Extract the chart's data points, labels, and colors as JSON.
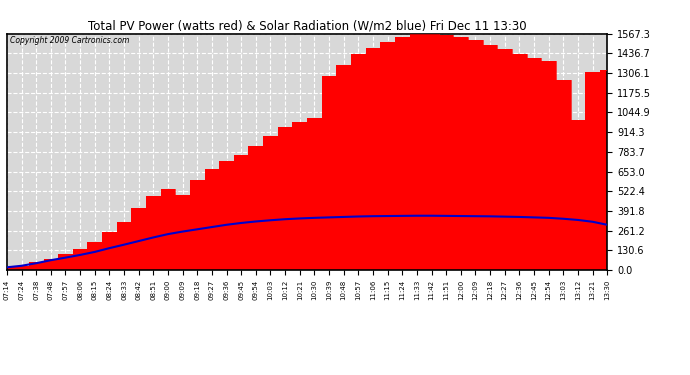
{
  "title": "Total PV Power (watts red) & Solar Radiation (W/m2 blue) Fri Dec 11 13:30",
  "copyright": "Copyright 2009 Cartronics.com",
  "bg_color": "#ffffff",
  "plot_bg_color": "#d8d8d8",
  "grid_color": "#ffffff",
  "fill_color": "#ff0000",
  "line_color": "#0000cc",
  "ylim": [
    0.0,
    1567.3
  ],
  "yticks": [
    0.0,
    130.6,
    261.2,
    391.8,
    522.4,
    653.0,
    783.7,
    914.3,
    1044.9,
    1175.5,
    1306.1,
    1436.7,
    1567.3
  ],
  "x_labels": [
    "07:14",
    "07:24",
    "07:38",
    "07:48",
    "07:57",
    "08:06",
    "08:15",
    "08:24",
    "08:33",
    "08:42",
    "08:51",
    "09:00",
    "09:09",
    "09:18",
    "09:27",
    "09:36",
    "09:45",
    "09:54",
    "10:03",
    "10:12",
    "10:21",
    "10:30",
    "10:39",
    "10:48",
    "10:57",
    "11:06",
    "11:15",
    "11:24",
    "11:33",
    "11:42",
    "11:51",
    "12:00",
    "12:09",
    "12:18",
    "12:27",
    "12:36",
    "12:45",
    "12:54",
    "13:03",
    "13:12",
    "13:21",
    "13:30"
  ],
  "pv_power": [
    18,
    28,
    50,
    75,
    100,
    140,
    185,
    240,
    300,
    380,
    460,
    520,
    470,
    580,
    660,
    700,
    730,
    800,
    870,
    930,
    950,
    980,
    1260,
    1320,
    1400,
    1450,
    1500,
    1530,
    1560,
    1567,
    1555,
    1540,
    1520,
    1490,
    1460,
    1430,
    1400,
    1380,
    1250,
    980,
    1310,
    1320
  ],
  "pv_power_v2": [
    18,
    28,
    50,
    75,
    105,
    140,
    185,
    250,
    320,
    410,
    490,
    540,
    500,
    600,
    670,
    720,
    760,
    820,
    890,
    950,
    980,
    1010,
    1290,
    1360,
    1430,
    1470,
    1510,
    1545,
    1565,
    1567,
    1560,
    1545,
    1525,
    1495,
    1465,
    1435,
    1405,
    1385,
    1260,
    995,
    1315,
    1325
  ],
  "solar_rad": [
    18,
    28,
    45,
    65,
    82,
    100,
    120,
    145,
    168,
    192,
    216,
    238,
    255,
    270,
    285,
    300,
    312,
    322,
    330,
    337,
    342,
    346,
    349,
    352,
    355,
    357,
    358,
    359,
    360,
    360,
    359,
    358,
    357,
    356,
    354,
    352,
    349,
    346,
    340,
    332,
    320,
    300
  ]
}
